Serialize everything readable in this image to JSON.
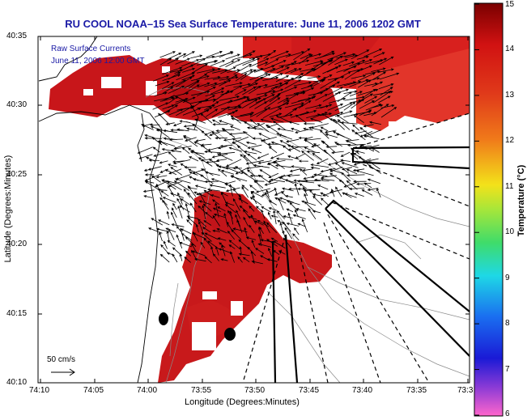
{
  "title": "RU COOL  NOAA–15  Sea Surface Temperature:  June 11, 2006 1202 GMT",
  "legend": {
    "line1": "Raw Surface Currents",
    "line2": "June 11, 2006 12:00 GMT",
    "scale": "50 cm/s"
  },
  "axes": {
    "xlabel": "Longitude (Degrees:Minutes)",
    "ylabel": "Latitude (Degrees:Minutes)",
    "xticks": [
      "74:10",
      "74:05",
      "74:00",
      "73:55",
      "73:50",
      "73:45",
      "73:40",
      "73:35",
      "73:3"
    ],
    "yticks": [
      "40:35",
      "40:30",
      "40:25",
      "40:20",
      "40:15",
      "40:10"
    ]
  },
  "colorbar": {
    "label": "Temperature (°C)",
    "ticks": [
      "15",
      "14",
      "13",
      "12",
      "11",
      "10",
      "9",
      "8",
      "7",
      "6"
    ]
  },
  "colors": {
    "title": "#1a1aa6",
    "sst_warm": "#c0151a",
    "land": "#ffffff",
    "frame": "#000000"
  }
}
